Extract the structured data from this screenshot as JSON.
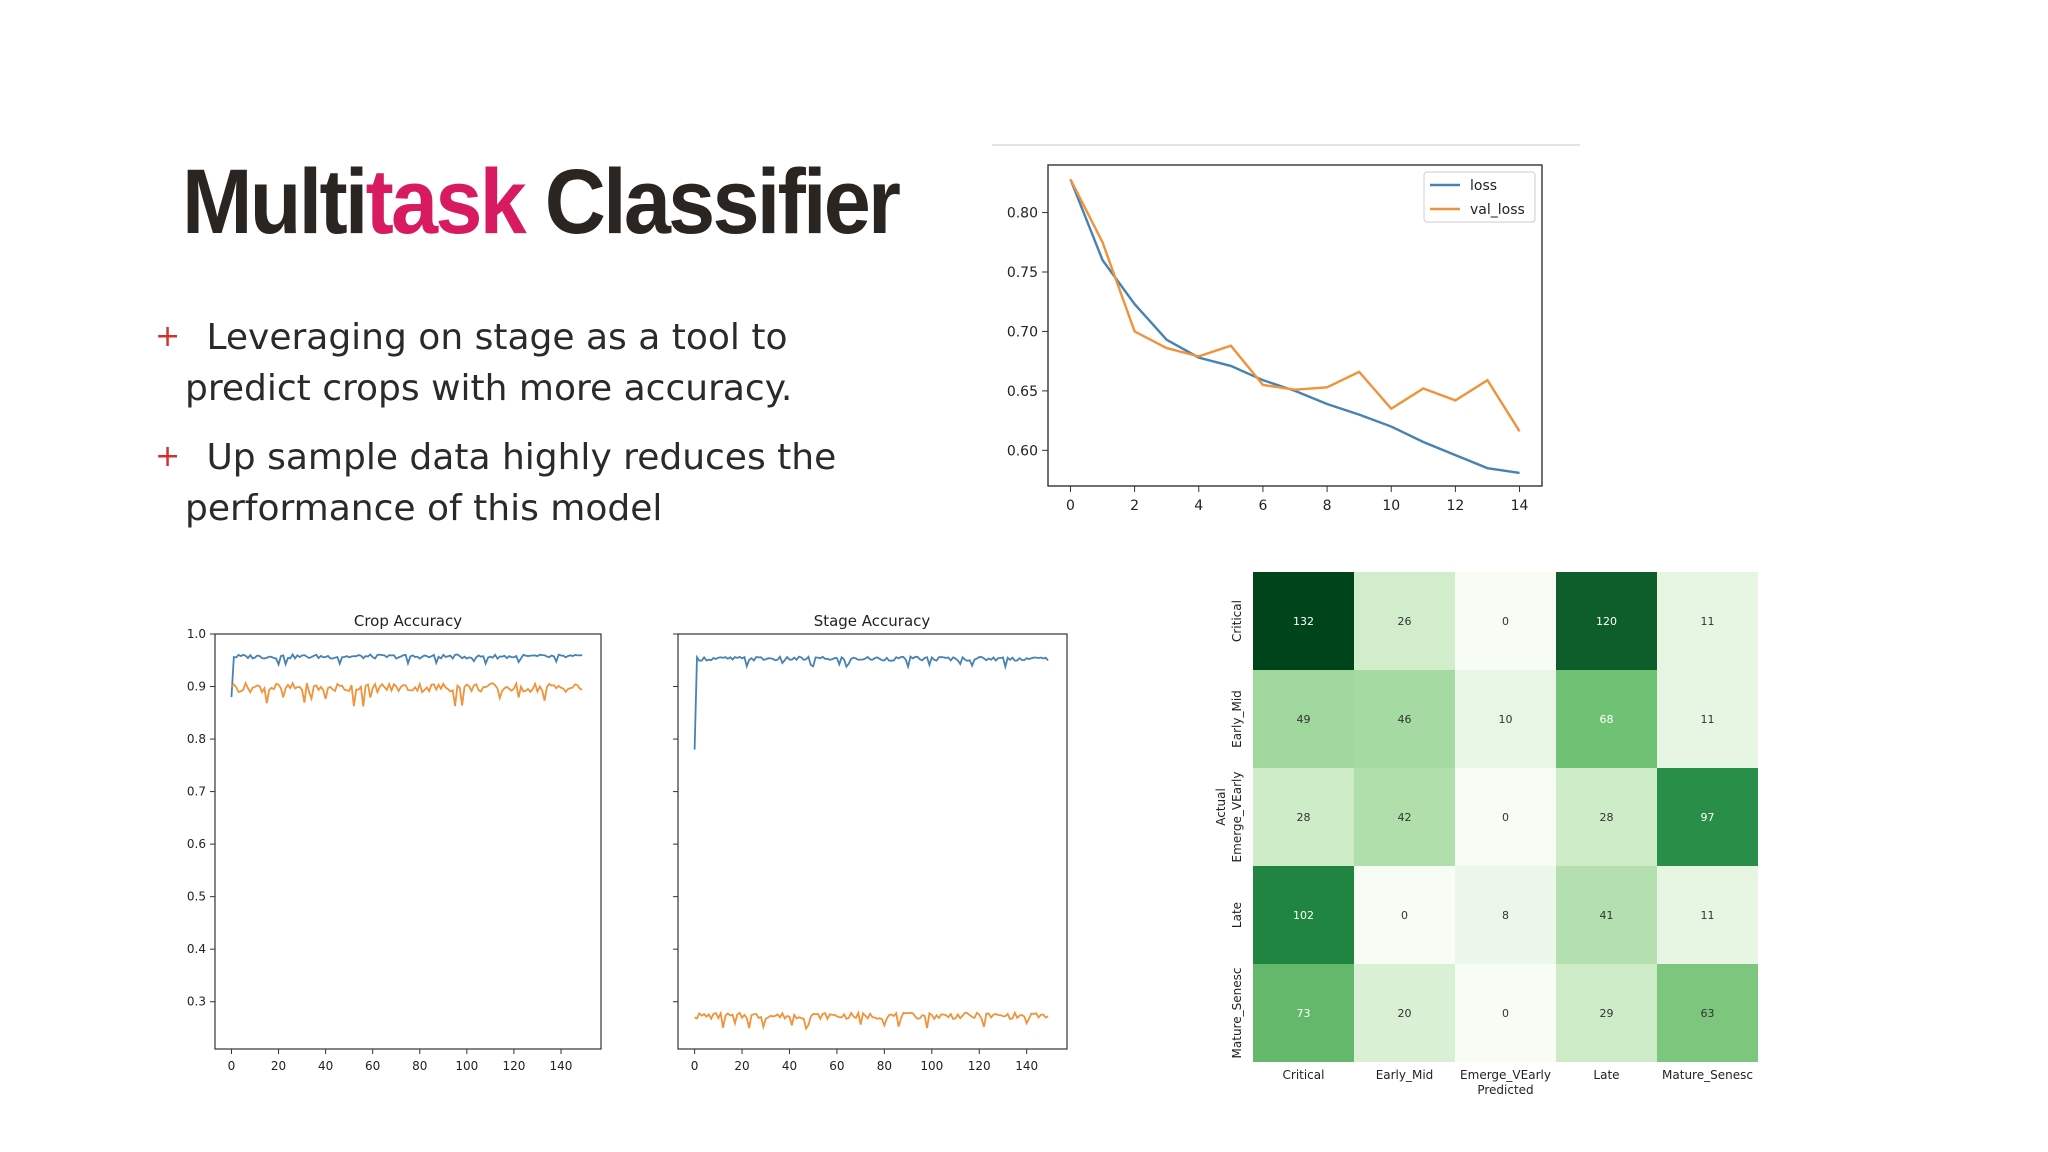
{
  "title": {
    "prefix": "Multi",
    "accent": "task",
    "suffix": " Classifier"
  },
  "colors": {
    "accent": "#d81b60",
    "title": "#2b2522",
    "bullet_plus": "#d32f2f",
    "loss": "#4682b4",
    "val_loss": "#f0933a"
  },
  "bullets": [
    {
      "icon": "plus-icon",
      "line1": " Leveraging on stage as a tool to",
      "line2": "predict crops with more accuracy."
    },
    {
      "icon": "plus-icon",
      "line1": " Up sample data highly reduces the",
      "line2": "performance of this model"
    }
  ],
  "chart_data": [
    {
      "type": "line",
      "legend_position": "top-right",
      "xlim": [
        -0.7,
        14.7
      ],
      "ylim": [
        0.57,
        0.84
      ],
      "xticks": [
        "0",
        "2",
        "4",
        "6",
        "8",
        "10",
        "12",
        "14"
      ],
      "yticks": [
        "0.60",
        "0.65",
        "0.70",
        "0.75",
        "0.80"
      ],
      "x": [
        0,
        1,
        2,
        3,
        4,
        5,
        6,
        7,
        8,
        9,
        10,
        11,
        12,
        13,
        14
      ],
      "series": [
        {
          "name": "loss",
          "values": [
            0.828,
            0.76,
            0.723,
            0.693,
            0.678,
            0.671,
            0.659,
            0.65,
            0.639,
            0.63,
            0.62,
            0.607,
            0.596,
            0.585,
            0.581
          ]
        },
        {
          "name": "val_loss",
          "values": [
            0.828,
            0.775,
            0.7,
            0.686,
            0.679,
            0.688,
            0.655,
            0.651,
            0.653,
            0.666,
            0.635,
            0.652,
            0.642,
            0.659,
            0.616
          ]
        }
      ]
    },
    {
      "type": "line",
      "title": "Crop Accuracy",
      "xlim": [
        -7,
        157
      ],
      "ylim": [
        0.21,
        1.0
      ],
      "xticks": [
        "0",
        "20",
        "40",
        "60",
        "80",
        "100",
        "120",
        "140"
      ],
      "yticks": [
        "0.3",
        "0.4",
        "0.5",
        "0.6",
        "0.7",
        "0.8",
        "0.9",
        "1.0"
      ],
      "series": [
        {
          "start": 0.88,
          "level": 0.957,
          "noise": 0.004
        },
        {
          "start": 0.9,
          "level": 0.898,
          "noise": 0.009
        }
      ]
    },
    {
      "type": "line",
      "title": "Stage Accuracy",
      "xlim": [
        -7,
        157
      ],
      "ylim": [
        0.21,
        1.0
      ],
      "xticks": [
        "0",
        "20",
        "40",
        "60",
        "80",
        "100",
        "120",
        "140"
      ],
      "series": [
        {
          "start": 0.78,
          "level": 0.953,
          "noise": 0.004
        },
        {
          "start": 0.27,
          "level": 0.273,
          "noise": 0.006
        }
      ]
    },
    {
      "type": "heatmap",
      "xlabel": "Predicted",
      "ylabel": "Actual",
      "row_labels": [
        "Critical",
        "Early_Mid",
        "Emerge_VEarly",
        "Late",
        "Mature_Senesc"
      ],
      "col_labels": [
        "Critical",
        "Early_Mid",
        "Emerge_VEarly",
        "Late",
        "Mature_Senesc"
      ],
      "values": [
        [
          132,
          26,
          0,
          120,
          11
        ],
        [
          49,
          46,
          10,
          68,
          11
        ],
        [
          28,
          42,
          0,
          28,
          97
        ],
        [
          102,
          0,
          8,
          41,
          11
        ],
        [
          73,
          20,
          0,
          29,
          63
        ]
      ],
      "vmax": 132
    }
  ]
}
